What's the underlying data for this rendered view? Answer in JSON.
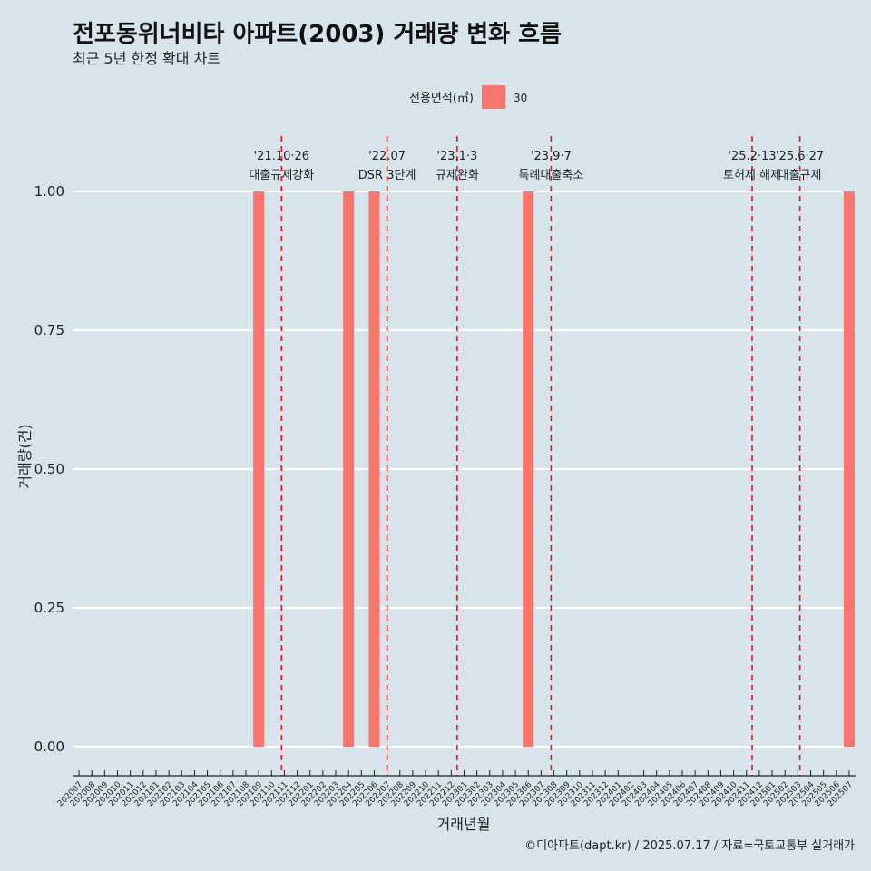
{
  "chart_data": {
    "type": "bar",
    "title": "전포동위너비타 아파트(2003) 거래량 변화 흐름",
    "subtitle": "최근 5년 한정 확대 차트",
    "xlabel": "거래년월",
    "ylabel": "거래량(건)",
    "ylim": [
      0,
      1
    ],
    "yticks": [
      "0.00",
      "0.25",
      "0.50",
      "0.75",
      "1.00"
    ],
    "legend": {
      "title": "전용면적(㎡)",
      "position": "top",
      "entries": [
        {
          "label": "30",
          "color": "#f8766d"
        }
      ]
    },
    "grid": true,
    "categories": [
      "202007",
      "202008",
      "202009",
      "202010",
      "202011",
      "202012",
      "202101",
      "202102",
      "202103",
      "202104",
      "202105",
      "202106",
      "202107",
      "202108",
      "202109",
      "202110",
      "202111",
      "202112",
      "202201",
      "202202",
      "202203",
      "202204",
      "202205",
      "202206",
      "202207",
      "202208",
      "202209",
      "202210",
      "202211",
      "202212",
      "202301",
      "202302",
      "202303",
      "202304",
      "202305",
      "202306",
      "202307",
      "202308",
      "202309",
      "202310",
      "202311",
      "202312",
      "202401",
      "202402",
      "202403",
      "202404",
      "202405",
      "202406",
      "202407",
      "202408",
      "202409",
      "202410",
      "202411",
      "202412",
      "202501",
      "202502",
      "202503",
      "202504",
      "202505",
      "202506",
      "202507"
    ],
    "series": [
      {
        "name": "30",
        "color": "#f8766d",
        "values": [
          0,
          0,
          0,
          0,
          0,
          0,
          0,
          0,
          0,
          0,
          0,
          0,
          0,
          0,
          1,
          0,
          0,
          0,
          0,
          0,
          0,
          1,
          0,
          1,
          0,
          0,
          0,
          0,
          0,
          0,
          0,
          0,
          0,
          0,
          0,
          1,
          0,
          0,
          0,
          0,
          0,
          0,
          0,
          0,
          0,
          0,
          0,
          0,
          0,
          0,
          0,
          0,
          0,
          0,
          0,
          0,
          0,
          0,
          0,
          0,
          1
        ]
      }
    ],
    "annotations": [
      {
        "date": "'21.10·26",
        "label": "대출규제강화",
        "x": 2021.815
      },
      {
        "date": "'22.07",
        "label": "DSR 3단계",
        "x": 2022.5
      },
      {
        "date": "'23.1·3",
        "label": "규제완화",
        "x": 2022.955
      },
      {
        "date": "'23.9·7",
        "label": "특례대출축소",
        "x": 2023.565
      },
      {
        "date": "'25.2·13",
        "label": "토허제 해제",
        "x": 2024.87
      },
      {
        "date": "'25.6·27",
        "label": "대출규제",
        "x": 2025.18
      }
    ],
    "caption": "©디아파트(dapt.kr) / 2025.07.17 / 자료=국토교통부 실거래가"
  }
}
